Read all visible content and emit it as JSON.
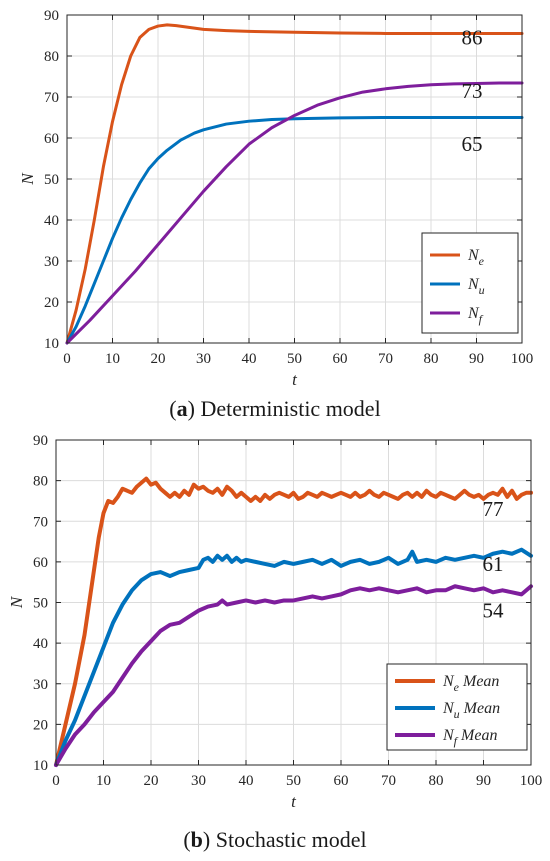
{
  "chart_data": [
    {
      "panel": "a",
      "type": "line",
      "caption": {
        "letter": "a",
        "text": "Deterministic model"
      },
      "xlabel": "t",
      "ylabel": "N",
      "xlim": [
        0,
        100
      ],
      "ylim": [
        10,
        90
      ],
      "xticks": [
        0,
        10,
        20,
        30,
        40,
        50,
        60,
        70,
        80,
        90,
        100
      ],
      "yticks": [
        10,
        20,
        30,
        40,
        50,
        60,
        70,
        80,
        90
      ],
      "grid": true,
      "legend_position": "bottom-right",
      "series": [
        {
          "name": "N",
          "subscript": "e",
          "suffix": "",
          "color": "#d95319",
          "x": [
            0,
            2,
            4,
            6,
            8,
            10,
            12,
            14,
            16,
            18,
            20,
            22,
            24,
            26,
            28,
            30,
            35,
            40,
            50,
            60,
            70,
            80,
            90,
            100
          ],
          "y": [
            10,
            18,
            28,
            40,
            53,
            64,
            73,
            80,
            84.5,
            86.5,
            87.3,
            87.6,
            87.4,
            87.1,
            86.8,
            86.5,
            86.2,
            86.0,
            85.8,
            85.6,
            85.5,
            85.5,
            85.5,
            85.5
          ]
        },
        {
          "name": "N",
          "subscript": "u",
          "suffix": "",
          "color": "#0072bd",
          "x": [
            0,
            2,
            4,
            6,
            8,
            10,
            12,
            14,
            16,
            18,
            20,
            22,
            25,
            28,
            30,
            35,
            40,
            45,
            50,
            60,
            70,
            80,
            90,
            100
          ],
          "y": [
            10,
            14,
            19,
            24.5,
            30,
            35.5,
            40.5,
            45,
            49,
            52.5,
            55,
            57,
            59.5,
            61.2,
            62,
            63.4,
            64.1,
            64.5,
            64.7,
            64.9,
            65,
            65,
            65,
            65
          ]
        },
        {
          "name": "N",
          "subscript": "f",
          "suffix": "",
          "color": "#7e1e9c",
          "x": [
            0,
            5,
            10,
            15,
            20,
            25,
            30,
            35,
            40,
            45,
            50,
            55,
            60,
            65,
            70,
            75,
            80,
            85,
            90,
            95,
            100
          ],
          "y": [
            10,
            15.5,
            21.5,
            27.5,
            34,
            40.5,
            47,
            53,
            58.5,
            62.5,
            65.5,
            68,
            69.8,
            71.2,
            72,
            72.6,
            73,
            73.2,
            73.3,
            73.4,
            73.4
          ]
        }
      ],
      "annotations": [
        {
          "text": "86",
          "x": 89,
          "y": 84.5
        },
        {
          "text": "73",
          "x": 89,
          "y": 71.5
        },
        {
          "text": "65",
          "x": 89,
          "y": 58.5
        }
      ]
    },
    {
      "panel": "b",
      "type": "line",
      "caption": {
        "letter": "b",
        "text": "Stochastic model"
      },
      "xlabel": "t",
      "ylabel": "N",
      "xlim": [
        0,
        100
      ],
      "ylim": [
        10,
        90
      ],
      "xticks": [
        0,
        10,
        20,
        30,
        40,
        50,
        60,
        70,
        80,
        90,
        100
      ],
      "yticks": [
        10,
        20,
        30,
        40,
        50,
        60,
        70,
        80,
        90
      ],
      "grid": true,
      "legend_position": "bottom-right",
      "series": [
        {
          "name": "N",
          "subscript": "e",
          "suffix": "Mean",
          "color": "#d95319",
          "x": [
            0,
            2,
            4,
            6,
            8,
            9,
            10,
            11,
            12,
            13,
            14,
            15,
            16,
            17,
            18,
            19,
            20,
            21,
            22,
            23,
            24,
            25,
            26,
            27,
            28,
            29,
            30,
            31,
            32,
            33,
            34,
            35,
            36,
            37,
            38,
            39,
            40,
            41,
            42,
            43,
            44,
            45,
            46,
            47,
            48,
            49,
            50,
            51,
            52,
            53,
            54,
            55,
            56,
            57,
            58,
            59,
            60,
            61,
            62,
            63,
            64,
            65,
            66,
            67,
            68,
            69,
            70,
            71,
            72,
            73,
            74,
            75,
            76,
            77,
            78,
            79,
            80,
            81,
            82,
            83,
            84,
            85,
            86,
            87,
            88,
            89,
            90,
            91,
            92,
            93,
            94,
            95,
            96,
            97,
            98,
            99,
            100
          ],
          "y": [
            10,
            20,
            30,
            42,
            58,
            66,
            72,
            75,
            74.5,
            76,
            78,
            77.5,
            77,
            78.5,
            79.5,
            80.5,
            79,
            79.5,
            78,
            77,
            76,
            77,
            76,
            77.5,
            76.5,
            79,
            78,
            78.5,
            77.5,
            77,
            78,
            76.5,
            78.5,
            77.5,
            76,
            77,
            76,
            75,
            76,
            75,
            76.5,
            75.5,
            76.5,
            77,
            76.5,
            76,
            77,
            75.5,
            76,
            77,
            76.5,
            76,
            77,
            76.5,
            76,
            76.5,
            77,
            76.5,
            76,
            77,
            76,
            76.5,
            77.5,
            76.5,
            76,
            77,
            76.5,
            76,
            75.5,
            76.5,
            77,
            76,
            77,
            76,
            77.5,
            76.5,
            76,
            77,
            76.5,
            76,
            75.5,
            76.5,
            77.5,
            76.5,
            76,
            76.5,
            75.5,
            76.5,
            77,
            76.5,
            78,
            76,
            77.5,
            75.5,
            76.5,
            77,
            77
          ]
        },
        {
          "name": "N",
          "subscript": "u",
          "suffix": "Mean",
          "color": "#0072bd",
          "x": [
            0,
            2,
            4,
            6,
            8,
            10,
            12,
            14,
            16,
            18,
            20,
            22,
            24,
            26,
            28,
            30,
            31,
            32,
            33,
            34,
            35,
            36,
            37,
            38,
            39,
            40,
            42,
            44,
            46,
            48,
            50,
            52,
            54,
            56,
            58,
            60,
            62,
            64,
            66,
            68,
            70,
            72,
            74,
            75,
            76,
            78,
            80,
            82,
            84,
            86,
            88,
            90,
            92,
            94,
            96,
            98,
            100
          ],
          "y": [
            10,
            16,
            21,
            27,
            33,
            39,
            45,
            49.5,
            53,
            55.5,
            57,
            57.5,
            56.5,
            57.5,
            58,
            58.5,
            60.5,
            61,
            60,
            61.5,
            60.5,
            61.5,
            60,
            61,
            60,
            60.5,
            60,
            59.5,
            59,
            60,
            59.5,
            60,
            60.5,
            59.5,
            60.5,
            59,
            60,
            60.5,
            59.5,
            60,
            61,
            59.5,
            60.5,
            62.5,
            60,
            60.5,
            60,
            61,
            60.5,
            61,
            61.5,
            61,
            62,
            62.5,
            62,
            63,
            61.5
          ]
        },
        {
          "name": "N",
          "subscript": "f",
          "suffix": "Mean",
          "color": "#7e1e9c",
          "x": [
            0,
            2,
            4,
            6,
            8,
            10,
            12,
            14,
            16,
            18,
            20,
            22,
            24,
            26,
            28,
            30,
            32,
            34,
            35,
            36,
            38,
            40,
            42,
            44,
            46,
            48,
            50,
            52,
            54,
            56,
            58,
            60,
            62,
            64,
            66,
            68,
            70,
            72,
            74,
            76,
            78,
            80,
            82,
            84,
            86,
            88,
            90,
            92,
            94,
            96,
            98,
            100
          ],
          "y": [
            10,
            14,
            17.5,
            20,
            23,
            25.5,
            28,
            31.5,
            35,
            38,
            40.5,
            43,
            44.5,
            45,
            46.5,
            48,
            49,
            49.5,
            50.5,
            49.5,
            50,
            50.5,
            50,
            50.5,
            50,
            50.5,
            50.5,
            51,
            51.5,
            51,
            51.5,
            52,
            53,
            53.5,
            53,
            53.5,
            53,
            52.5,
            53,
            53.5,
            52.5,
            53,
            53,
            54,
            53.5,
            53,
            53.5,
            52.5,
            53,
            52.5,
            52,
            54
          ]
        }
      ],
      "annotations": [
        {
          "text": "77",
          "x": 92,
          "y": 73
        },
        {
          "text": "61",
          "x": 92,
          "y": 59.5
        },
        {
          "text": "54",
          "x": 92,
          "y": 48
        }
      ]
    }
  ]
}
